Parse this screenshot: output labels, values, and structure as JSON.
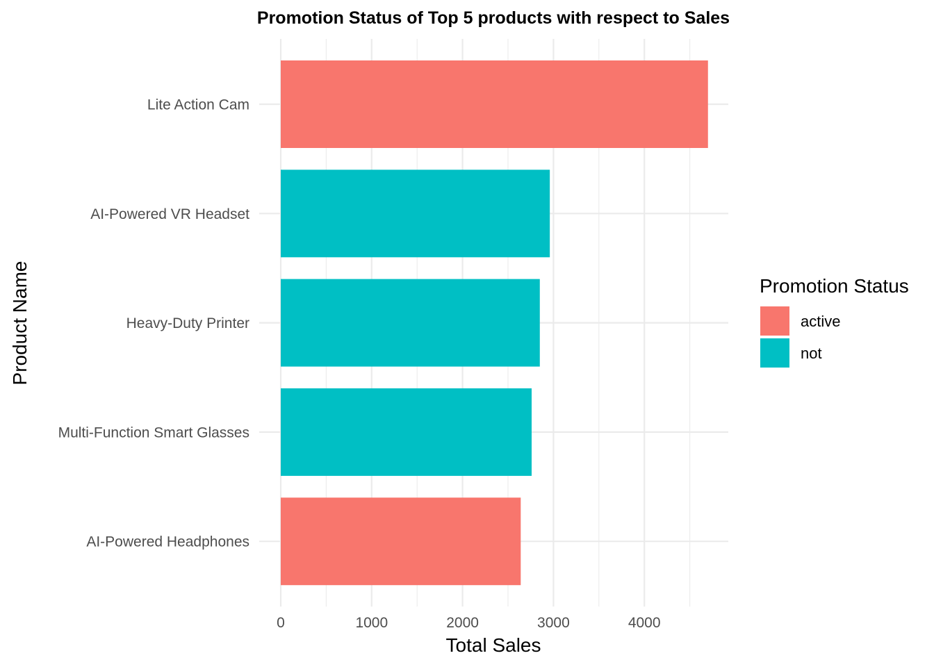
{
  "chart_data": {
    "type": "bar",
    "orientation": "horizontal",
    "title": "Promotion Status of Top 5 products with respect to Sales",
    "xlabel": "Total Sales",
    "ylabel": "Product Name",
    "xlim": [
      0,
      4700
    ],
    "x_ticks": [
      0,
      1000,
      2000,
      3000,
      4000
    ],
    "x_tick_labels": [
      "0",
      "1000",
      "2000",
      "3000",
      "4000"
    ],
    "grid": true,
    "legend_position": "right",
    "legend_title": "Promotion Status",
    "legend": [
      {
        "label": "active",
        "color": "#F8766D"
      },
      {
        "label": "not",
        "color": "#00BFC4"
      }
    ],
    "categories": [
      "Lite Action Cam",
      "AI-Powered VR Headset",
      "Heavy-Duty Printer",
      "Multi-Function Smart Glasses",
      "AI-Powered Headphones"
    ],
    "values": [
      4700,
      2960,
      2850,
      2760,
      2640
    ],
    "status": [
      "active",
      "not",
      "not",
      "not",
      "active"
    ]
  }
}
